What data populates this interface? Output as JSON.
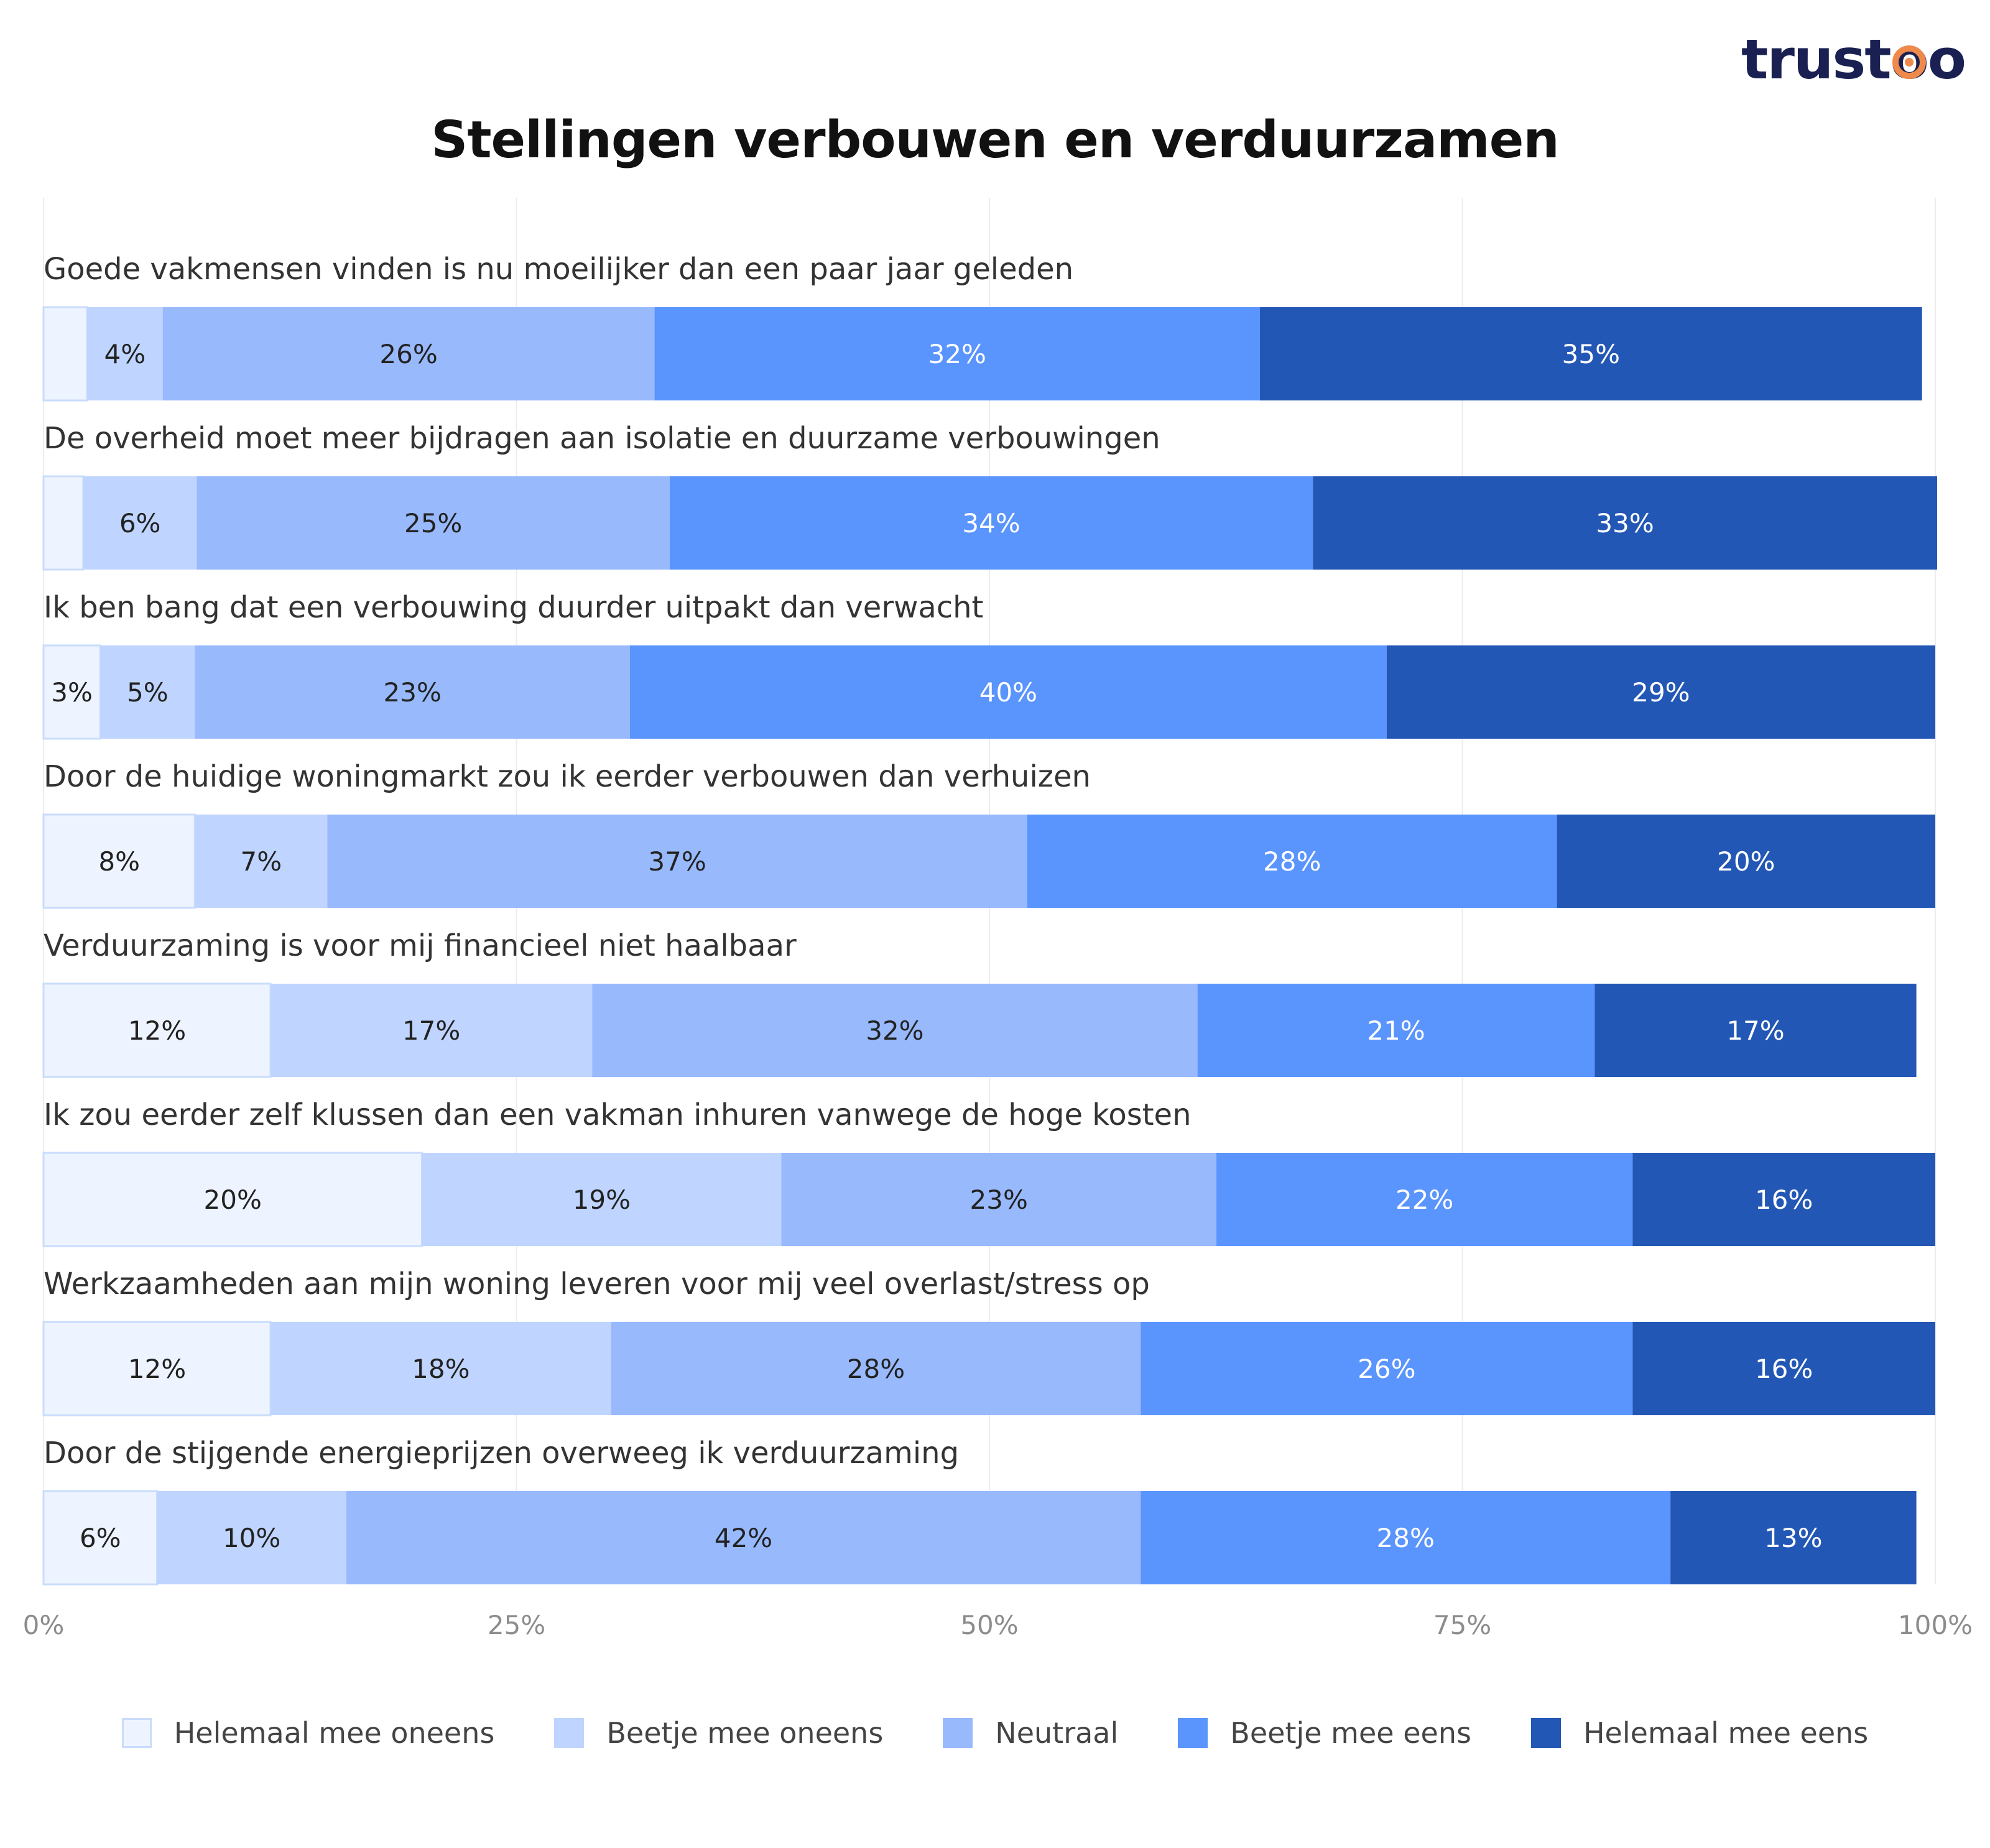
{
  "brand": {
    "logo_text": "trustoo"
  },
  "chart_data": {
    "type": "bar",
    "orientation": "horizontal-stacked-100",
    "title": "Stellingen verbouwen en verduurzamen",
    "categories": [
      "Goede vakmensen vinden is nu moeilijker dan een paar jaar geleden",
      "De overheid moet meer bijdragen aan isolatie en duurzame verbouwingen",
      "Ik ben bang dat een verbouwing duurder uitpakt dan verwacht",
      "Door de huidige woningmarkt zou ik eerder verbouwen dan verhuizen",
      "Verduurzaming is voor mij financieel niet haalbaar",
      "Ik zou eerder zelf klussen dan een vakman inhuren vanwege de hoge kosten",
      "Werkzaamheden aan mijn woning leveren voor mij veel overlast/stress op",
      "Door de stijgende energieprijzen overweeg ik verduurzaming"
    ],
    "series": [
      {
        "name": "Helemaal mee oneens",
        "color": "#eef4ff",
        "text_color": "#222222",
        "values": [
          2.3,
          2.1,
          3,
          8,
          12,
          20,
          12,
          6
        ]
      },
      {
        "name": "Beetje mee oneens",
        "color": "#bfd5ff",
        "text_color": "#222222",
        "values": [
          4,
          6,
          5,
          7,
          17,
          19,
          18,
          10
        ]
      },
      {
        "name": "Neutraal",
        "color": "#98b9fc",
        "text_color": "#222222",
        "values": [
          26,
          25,
          23,
          37,
          32,
          23,
          28,
          42
        ]
      },
      {
        "name": "Beetje mee eens",
        "color": "#5a94fd",
        "text_color": "#ffffff",
        "values": [
          32,
          34,
          40,
          28,
          21,
          22,
          26,
          28
        ]
      },
      {
        "name": "Helemaal mee eens",
        "color": "#2357b5",
        "text_color": "#ffffff",
        "values": [
          35,
          33,
          29,
          20,
          17,
          16,
          16,
          13
        ]
      }
    ],
    "data_labels": [
      [
        "",
        "4%",
        "26%",
        "32%",
        "35%"
      ],
      [
        "",
        "6%",
        "25%",
        "34%",
        "33%"
      ],
      [
        "3%",
        "5%",
        "23%",
        "40%",
        "29%"
      ],
      [
        "8%",
        "7%",
        "37%",
        "28%",
        "20%"
      ],
      [
        "12%",
        "17%",
        "32%",
        "21%",
        "17%"
      ],
      [
        "20%",
        "19%",
        "23%",
        "22%",
        "16%"
      ],
      [
        "12%",
        "18%",
        "28%",
        "26%",
        "16%"
      ],
      [
        "6%",
        "10%",
        "42%",
        "28%",
        "13%"
      ]
    ],
    "x_ticks": [
      "0%",
      "25%",
      "50%",
      "75%",
      "100%"
    ],
    "xlim": [
      0,
      100
    ],
    "grid": true,
    "legend_position": "bottom"
  }
}
